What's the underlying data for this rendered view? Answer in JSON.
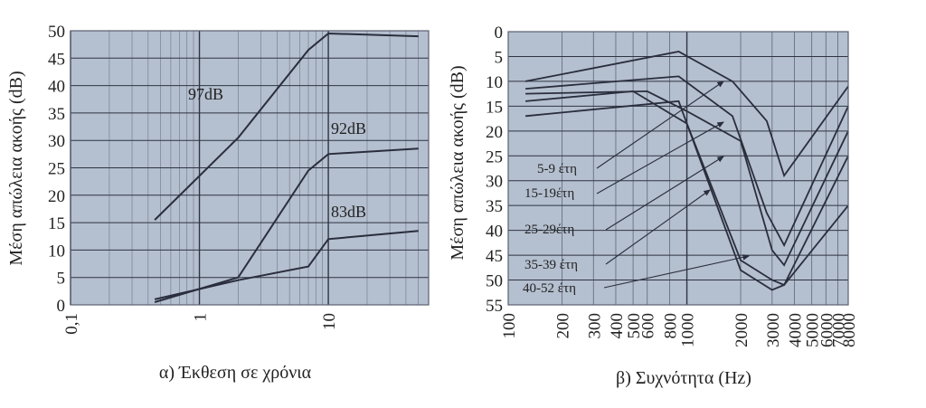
{
  "chart_data": [
    {
      "type": "line",
      "caption": "α) Έκθεση σε χρόνια",
      "ylabel": "Μέση απώλεια ακοής (dB)",
      "xlabel": "",
      "x_scale": "log",
      "xlim": [
        0.1,
        60
      ],
      "ylim": [
        0,
        50
      ],
      "x_ticks": [
        0.1,
        1,
        10
      ],
      "x_tick_labels": [
        "0,1",
        "1",
        "10"
      ],
      "y_ticks": [
        0,
        5,
        10,
        15,
        20,
        25,
        30,
        35,
        40,
        45,
        50
      ],
      "y_tick_labels": [
        "0",
        "5",
        "10",
        "15",
        "20",
        "25",
        "30",
        "35",
        "40",
        "45",
        "50"
      ],
      "grid": true,
      "background": "#b4bfcf",
      "line_color": "#2a2e3c",
      "series": [
        {
          "name": "97dB",
          "x": [
            0.45,
            2,
            7,
            10,
            50
          ],
          "y": [
            15.5,
            30.5,
            46.5,
            49.5,
            49
          ]
        },
        {
          "name": "92dB",
          "x": [
            0.45,
            2,
            7,
            10,
            50
          ],
          "y": [
            0.5,
            5,
            24.5,
            27.5,
            28.5
          ]
        },
        {
          "name": "83dB",
          "x": [
            0.45,
            2,
            7,
            10,
            50
          ],
          "y": [
            1,
            4.5,
            7,
            12,
            13.5
          ]
        }
      ]
    },
    {
      "type": "line",
      "caption": "β) Συχνότητα (Hz)",
      "ylabel": "Μέση απώλεια ακοής (dB)",
      "xlabel": "",
      "x_scale": "log",
      "xlim": [
        100,
        8000
      ],
      "ylim": [
        55,
        0
      ],
      "y_inverted": true,
      "x_ticks": [
        100,
        200,
        300,
        400,
        500,
        600,
        800,
        1000,
        2000,
        3000,
        4000,
        5000,
        6000,
        7000,
        8000
      ],
      "x_tick_labels": [
        "100",
        "200",
        "300",
        "400",
        "500",
        "600",
        "800",
        "1000",
        "2000",
        "3000",
        "4000",
        "5000",
        "6000",
        "7000",
        "8000"
      ],
      "y_ticks": [
        0,
        5,
        10,
        15,
        20,
        25,
        30,
        35,
        40,
        45,
        50,
        55
      ],
      "y_tick_labels": [
        "0",
        "5",
        "10",
        "15",
        "20",
        "25",
        "30",
        "35",
        "40",
        "45",
        "50",
        "55"
      ],
      "grid": true,
      "background": "#b4bfcf",
      "line_color": "#2a2e3c",
      "series": [
        {
          "name": "5-9 έτη",
          "x": [
            125,
            900,
            1800,
            2800,
            3500,
            8000
          ],
          "y": [
            10,
            4,
            10,
            18,
            29,
            11
          ]
        },
        {
          "name": "15-19έτη",
          "x": [
            125,
            900,
            1800,
            2800,
            3500,
            8000
          ],
          "y": [
            11.5,
            9,
            17,
            36.5,
            43,
            15
          ]
        },
        {
          "name": "25-29έτη",
          "x": [
            125,
            600,
            1000,
            2000,
            3000,
            3500,
            8000
          ],
          "y": [
            12.5,
            12,
            16,
            22,
            44,
            47,
            20
          ]
        },
        {
          "name": "35-39 έτη",
          "x": [
            125,
            500,
            1000,
            2000,
            3000,
            3500,
            8000
          ],
          "y": [
            14,
            12,
            18.5,
            46,
            50,
            51,
            25
          ]
        },
        {
          "name": "40-52 έτη",
          "x": [
            125,
            900,
            2000,
            3000,
            3500,
            8000
          ],
          "y": [
            17,
            14,
            48,
            52,
            51,
            35
          ]
        }
      ]
    }
  ]
}
